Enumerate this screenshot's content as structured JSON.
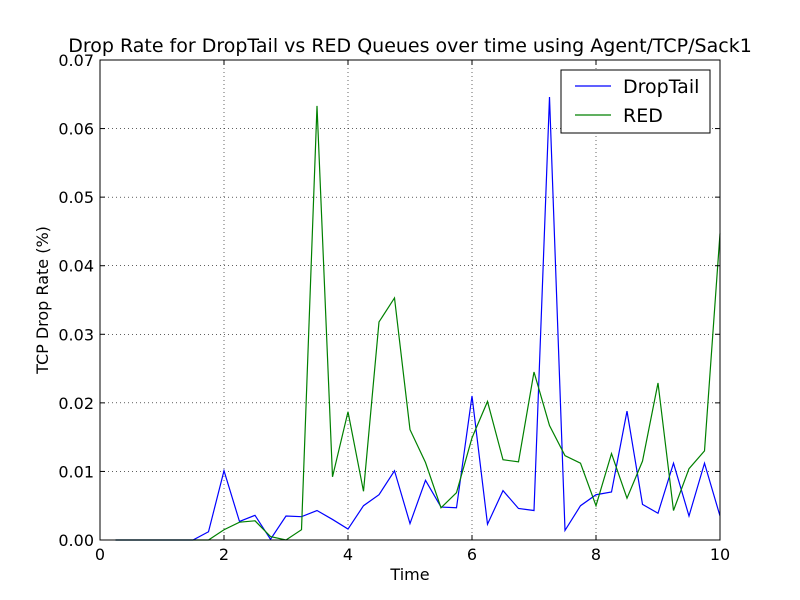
{
  "chart_data": {
    "type": "line",
    "title": "Drop Rate for DropTail vs RED Queues over time using Agent/TCP/Sack1",
    "xlabel": "Time",
    "ylabel": "TCP Drop Rate (%)",
    "xlim": [
      0,
      10
    ],
    "ylim": [
      0,
      0.07
    ],
    "xticks": [
      "0",
      "2",
      "4",
      "6",
      "8",
      "10"
    ],
    "yticks": [
      "0.00",
      "0.01",
      "0.02",
      "0.03",
      "0.04",
      "0.05",
      "0.06",
      "0.07"
    ],
    "grid": true,
    "legend_position": "top-right",
    "x": [
      0.25,
      0.5,
      0.75,
      1.0,
      1.25,
      1.5,
      1.75,
      2.0,
      2.25,
      2.5,
      2.75,
      3.0,
      3.25,
      3.5,
      3.75,
      4.0,
      4.25,
      4.5,
      4.75,
      5.0,
      5.25,
      5.5,
      5.75,
      6.0,
      6.25,
      6.5,
      6.75,
      7.0,
      7.25,
      7.5,
      7.75,
      8.0,
      8.25,
      8.5,
      8.75,
      9.0,
      9.25,
      9.5,
      9.75,
      10.0
    ],
    "series": [
      {
        "name": "DropTail",
        "color": "#0000ff",
        "values": [
          0,
          0,
          0,
          0,
          0,
          0,
          0.0012,
          0.0101,
          0.0027,
          0.0036,
          0.0001,
          0.0035,
          0.0034,
          0.0043,
          0.003,
          0.0016,
          0.005,
          0.0066,
          0.0101,
          0.0024,
          0.0087,
          0.0048,
          0.0047,
          0.021,
          0.0023,
          0.0072,
          0.0046,
          0.0043,
          0.0646,
          0.0014,
          0.005,
          0.0066,
          0.007,
          0.0188,
          0.0052,
          0.0039,
          0.0112,
          0.0035,
          0.0112,
          0.0035
        ]
      },
      {
        "name": "RED",
        "color": "#008000",
        "values": [
          0,
          0,
          0,
          0,
          0,
          0,
          0,
          0.0015,
          0.0026,
          0.0028,
          0.0005,
          0,
          0.0015,
          0.0633,
          0.0092,
          0.0187,
          0.0071,
          0.0318,
          0.0353,
          0.0161,
          0.0113,
          0.0047,
          0.0069,
          0.0149,
          0.0202,
          0.0117,
          0.0114,
          0.0245,
          0.0167,
          0.0123,
          0.0112,
          0.005,
          0.0126,
          0.0061,
          0.0115,
          0.0229,
          0.0043,
          0.0104,
          0.013,
          0.0447
        ]
      }
    ]
  }
}
